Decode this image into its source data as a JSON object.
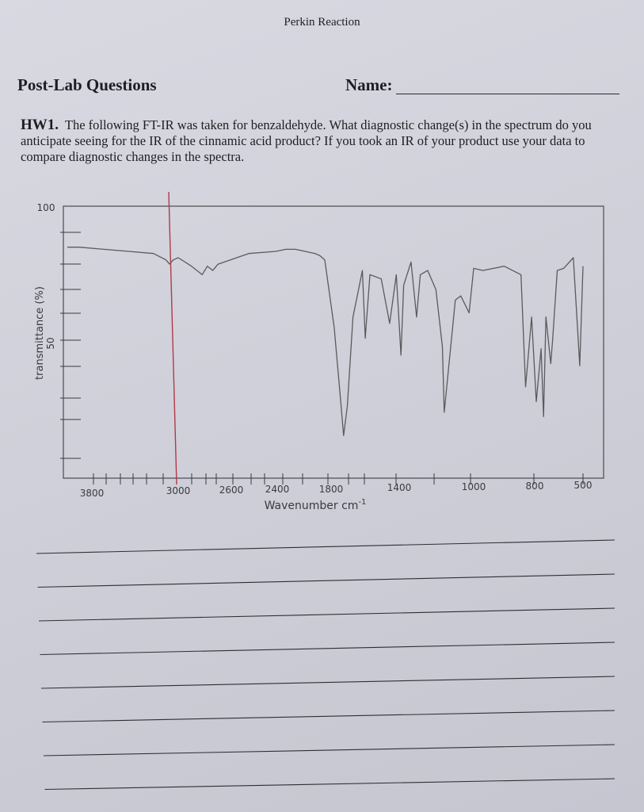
{
  "header": {
    "title": "Perkin Reaction"
  },
  "section": {
    "title": "Post-Lab Questions",
    "name_label": "Name:"
  },
  "question": {
    "number": "HW1.",
    "text": "The following FT-IR was taken for benzaldehyde. What diagnostic change(s) in the spectrum do you anticipate seeing for the IR of the cinnamic acid product? If you took an IR of your product use your data to compare diagnostic changes in the spectra."
  },
  "chart_data": {
    "type": "line",
    "title": "",
    "xlabel": "Wavenumber cm-1",
    "ylabel": "transmittance (%)",
    "x_tick_labels": [
      "3800",
      "3000",
      "2600",
      "2400",
      "1800",
      "1400",
      "1000",
      "800",
      "500"
    ],
    "y_tick_labels": [
      "100",
      "50"
    ],
    "grid": false,
    "series": [
      {
        "values_note_free": true,
        "x": [
          3950,
          3800,
          3600,
          3400,
          3200,
          3100,
          3070,
          3040,
          3000,
          2900,
          2820,
          2780,
          2740,
          2700,
          2500,
          2300,
          2200,
          2100,
          2000,
          1900,
          1850,
          1800,
          1750,
          1720,
          1700,
          1680,
          1650,
          1600,
          1585,
          1560,
          1500,
          1455,
          1420,
          1395,
          1380,
          1340,
          1310,
          1290,
          1250,
          1205,
          1170,
          1160,
          1100,
          1070,
          1025,
          1000,
          970,
          900,
          845,
          830,
          810,
          790,
          760,
          745,
          730,
          700,
          688,
          660,
          620,
          560,
          520,
          500
        ],
        "y": [
          93,
          93,
          92,
          91,
          90,
          87,
          85,
          87,
          88,
          84,
          80,
          84,
          82,
          85,
          90,
          91,
          92,
          92,
          91,
          90,
          89,
          87,
          55,
          25,
          4,
          18,
          60,
          82,
          50,
          80,
          78,
          57,
          80,
          42,
          75,
          86,
          60,
          80,
          82,
          73,
          46,
          15,
          68,
          70,
          62,
          83,
          82,
          84,
          80,
          27,
          60,
          20,
          45,
          13,
          60,
          38,
          50,
          82,
          83,
          88,
          37,
          84
        ]
      }
    ]
  }
}
